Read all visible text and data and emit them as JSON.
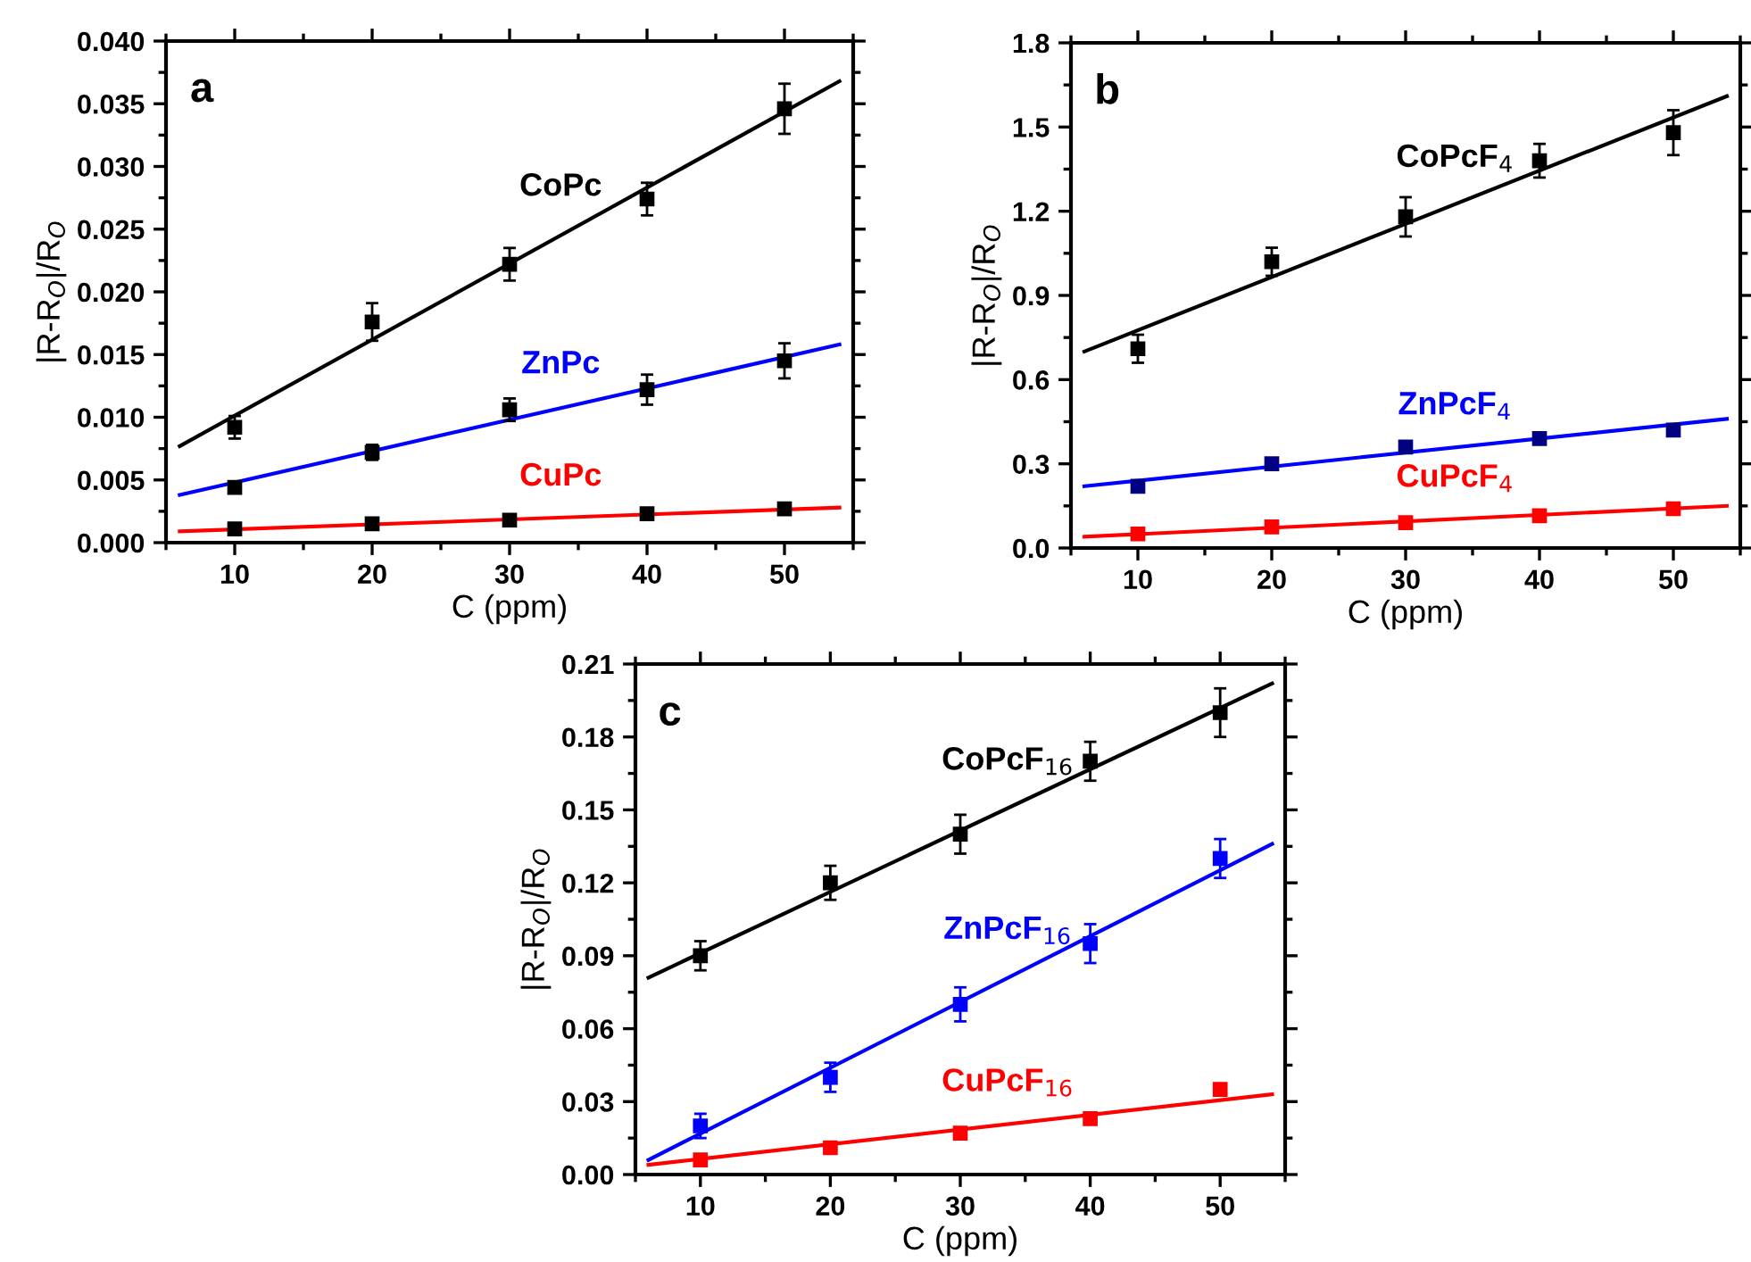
{
  "chart_data": [
    {
      "type": "scatter",
      "title": "a",
      "xlabel": "C (ppm)",
      "ylabel": "|R-R$_{O}$|/R$_{O}$",
      "xlim": [
        5,
        55
      ],
      "xticks": [
        10,
        20,
        30,
        40,
        50
      ],
      "ylim": [
        0,
        0.04
      ],
      "yticks": [
        {
          "value": 0,
          "label": "0.000"
        },
        {
          "value": 0.005,
          "label": "0.005"
        },
        {
          "value": 0.01,
          "label": "0.010"
        },
        {
          "value": 0.015,
          "label": "0.015"
        },
        {
          "value": 0.02,
          "label": "0.020"
        },
        {
          "value": 0.025,
          "label": "0.025"
        },
        {
          "value": 0.03,
          "label": "0.030"
        },
        {
          "value": 0.035,
          "label": "0.035"
        },
        {
          "value": 0.04,
          "label": "0.040"
        }
      ],
      "marker": "square",
      "grid": false,
      "series": [
        {
          "type": "scatter",
          "color": "#000000",
          "x": [
            10,
            20,
            30,
            40,
            50
          ],
          "values": [
            0.0092,
            0.0176,
            0.0222,
            0.0274,
            0.0346
          ],
          "errors": [
            0.0009,
            0.0015,
            0.0013,
            0.0013,
            0.002
          ]
        },
        {
          "type": "scatter",
          "color": "#000000",
          "x": [
            10,
            20,
            30,
            40,
            50
          ],
          "values": [
            0.0044,
            0.0072,
            0.0106,
            0.0122,
            0.0145
          ],
          "errors": [
            0.0004,
            0.0006,
            0.0009,
            0.0012,
            0.0014
          ]
        },
        {
          "type": "scatter",
          "color": "#000000",
          "x": [
            10,
            20,
            30,
            40,
            50
          ],
          "values": [
            0.0011,
            0.0015,
            0.0018,
            0.0023,
            0.0027
          ]
        },
        {
          "type": "line",
          "marker": "none",
          "name": "CoPc",
          "color": "#000000",
          "x": [
            6,
            54
          ],
          "values": [
            0.0077,
            0.0368
          ]
        },
        {
          "type": "line",
          "marker": "none",
          "name": "ZnPc",
          "color": "#0000ff",
          "x": [
            6,
            54
          ],
          "values": [
            0.0038,
            0.0158
          ]
        },
        {
          "type": "line",
          "marker": "none",
          "name": "CuPc",
          "color": "#ff0000",
          "x": [
            6,
            54
          ],
          "values": [
            0.0009,
            0.0028
          ]
        }
      ]
    },
    {
      "type": "scatter",
      "title": "b",
      "xlabel": "C (ppm)",
      "ylabel": "|R-R$_{O}$|/R$_{O}$",
      "xlim": [
        5,
        55
      ],
      "xticks": [
        10,
        20,
        30,
        40,
        50
      ],
      "ylim": [
        0,
        1.8
      ],
      "yticks": [
        {
          "value": 0,
          "label": "0.0"
        },
        0.3,
        0.6,
        0.9,
        1.2,
        1.5,
        1.8
      ],
      "marker": "square",
      "grid": false,
      "series": [
        {
          "type": "scatter",
          "color": "#000000",
          "x": [
            10,
            20,
            30,
            40,
            50
          ],
          "values": [
            0.71,
            1.02,
            1.18,
            1.38,
            1.48
          ],
          "errors": [
            0.05,
            0.05,
            0.07,
            0.06,
            0.08
          ]
        },
        {
          "type": "scatter",
          "color": "#000080",
          "x": [
            10,
            20,
            30,
            40,
            50
          ],
          "values": [
            0.22,
            0.3,
            0.36,
            0.39,
            0.42
          ]
        },
        {
          "type": "scatter",
          "color": "#ff0000",
          "x": [
            10,
            20,
            30,
            40,
            50
          ],
          "values": [
            0.05,
            0.075,
            0.09,
            0.115,
            0.14
          ]
        },
        {
          "type": "line",
          "marker": "none",
          "name": "CoPcF$_{4}$",
          "color": "#000000",
          "x": [
            6,
            54
          ],
          "values": [
            0.7,
            1.61
          ]
        },
        {
          "type": "line",
          "marker": "none",
          "name": "ZnPcF$_{4}$",
          "color": "#0000ff",
          "x": [
            6,
            54
          ],
          "values": [
            0.22,
            0.46
          ]
        },
        {
          "type": "line",
          "marker": "none",
          "name": "CuPcF$_{4}$",
          "color": "#ff0000",
          "x": [
            6,
            54
          ],
          "values": [
            0.04,
            0.15
          ]
        }
      ]
    },
    {
      "type": "scatter",
      "title": "c",
      "xlabel": "C (ppm)",
      "ylabel": "|R-R$_{O}$|/R$_{O}$",
      "xlim": [
        5,
        55
      ],
      "xticks": [
        10,
        20,
        30,
        40,
        50
      ],
      "ylim": [
        0,
        0.21
      ],
      "yticks": [
        {
          "value": 0,
          "label": "0.00"
        },
        {
          "value": 0.03,
          "label": "0.03"
        },
        {
          "value": 0.06,
          "label": "0.06"
        },
        {
          "value": 0.09,
          "label": "0.09"
        },
        {
          "value": 0.12,
          "label": "0.12"
        },
        {
          "value": 0.15,
          "label": "0.15"
        },
        {
          "value": 0.18,
          "label": "0.18"
        },
        {
          "value": 0.21,
          "label": "0.21"
        }
      ],
      "marker": "square",
      "grid": false,
      "series": [
        {
          "type": "scatter",
          "color": "#000000",
          "x": [
            10,
            20,
            30,
            40,
            50
          ],
          "values": [
            0.09,
            0.12,
            0.14,
            0.17,
            0.19
          ],
          "errors": [
            0.006,
            0.007,
            0.008,
            0.008,
            0.01
          ]
        },
        {
          "type": "scatter",
          "color": "#0000ff",
          "x": [
            10,
            20,
            30,
            40,
            50
          ],
          "values": [
            0.02,
            0.04,
            0.07,
            0.095,
            0.13
          ],
          "errors": [
            0.005,
            0.006,
            0.007,
            0.008,
            0.008
          ]
        },
        {
          "type": "scatter",
          "color": "#ff0000",
          "x": [
            10,
            20,
            30,
            40,
            50
          ],
          "values": [
            0.006,
            0.011,
            0.017,
            0.023,
            0.035
          ]
        },
        {
          "type": "line",
          "marker": "none",
          "name": "CoPcF$_{16}$",
          "color": "#000000",
          "x": [
            6,
            54
          ],
          "values": [
            0.081,
            0.202
          ]
        },
        {
          "type": "line",
          "marker": "none",
          "name": "ZnPcF$_{16}$",
          "color": "#0000ff",
          "x": [
            6,
            54
          ],
          "values": [
            0.006,
            0.136
          ]
        },
        {
          "type": "line",
          "marker": "none",
          "name": "CuPcF$_{16}$",
          "color": "#ff0000",
          "x": [
            6,
            54
          ],
          "values": [
            0.004,
            0.033
          ]
        }
      ]
    }
  ]
}
